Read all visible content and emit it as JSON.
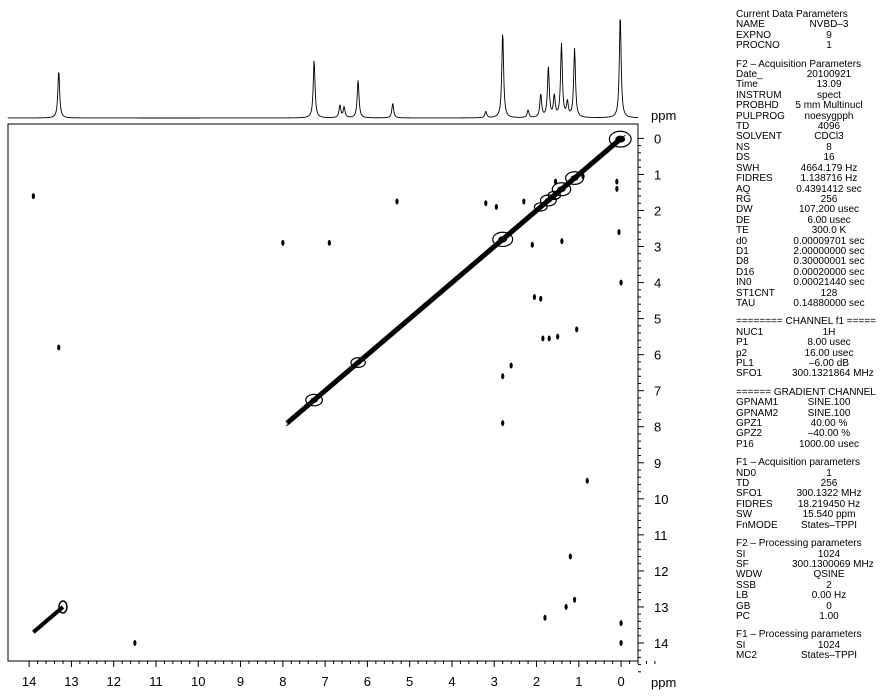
{
  "chart_data": {
    "type": "scatter",
    "title": "",
    "xlabel": "ppm",
    "ylabel": "ppm",
    "xlim": [
      14.5,
      -0.4
    ],
    "ylim": [
      14.5,
      -0.4
    ],
    "x_ticks": [
      "14",
      "13",
      "12",
      "11",
      "10",
      "9",
      "8",
      "7",
      "6",
      "5",
      "4",
      "3",
      "2",
      "1",
      "0"
    ],
    "y_ticks": [
      "0",
      "1",
      "2",
      "3",
      "4",
      "5",
      "6",
      "7",
      "8",
      "9",
      "10",
      "11",
      "12",
      "13",
      "14"
    ],
    "f2_projection_peaks": [
      {
        "ppm": 13.3,
        "height": 0.45
      },
      {
        "ppm": 7.26,
        "height": 0.55
      },
      {
        "ppm": 6.65,
        "height": 0.12
      },
      {
        "ppm": 6.55,
        "height": 0.1
      },
      {
        "ppm": 6.22,
        "height": 0.36
      },
      {
        "ppm": 5.4,
        "height": 0.14
      },
      {
        "ppm": 3.2,
        "height": 0.06
      },
      {
        "ppm": 2.8,
        "height": 0.82
      },
      {
        "ppm": 2.2,
        "height": 0.07
      },
      {
        "ppm": 1.9,
        "height": 0.22
      },
      {
        "ppm": 1.72,
        "height": 0.48
      },
      {
        "ppm": 1.58,
        "height": 0.2
      },
      {
        "ppm": 1.41,
        "height": 0.7
      },
      {
        "ppm": 1.27,
        "height": 0.14
      },
      {
        "ppm": 1.1,
        "height": 0.66
      },
      {
        "ppm": 0.02,
        "height": 0.98
      }
    ],
    "diagonal": {
      "from_ppm": 7.9,
      "to_ppm": 0.0
    },
    "cross_peaks": [
      {
        "x": 13.9,
        "y": 1.6
      },
      {
        "x": 13.3,
        "y": 5.8
      },
      {
        "x": 11.5,
        "y": 14.0
      },
      {
        "x": 8.0,
        "y": 2.9
      },
      {
        "x": 6.9,
        "y": 2.9
      },
      {
        "x": 5.3,
        "y": 1.75
      },
      {
        "x": 3.2,
        "y": 1.8
      },
      {
        "x": 2.95,
        "y": 1.9
      },
      {
        "x": 2.8,
        "y": 6.6
      },
      {
        "x": 2.8,
        "y": 7.9
      },
      {
        "x": 2.3,
        "y": 1.75
      },
      {
        "x": 2.1,
        "y": 2.95
      },
      {
        "x": 2.05,
        "y": 4.4
      },
      {
        "x": 1.9,
        "y": 4.45
      },
      {
        "x": 1.85,
        "y": 5.55
      },
      {
        "x": 1.7,
        "y": 5.55
      },
      {
        "x": 1.5,
        "y": 5.5
      },
      {
        "x": 1.4,
        "y": 2.85
      },
      {
        "x": 1.55,
        "y": 1.2
      },
      {
        "x": 1.05,
        "y": 5.3
      },
      {
        "x": 0.9,
        "y": 1.05
      },
      {
        "x": 0.8,
        "y": 9.5
      },
      {
        "x": 1.8,
        "y": 13.3
      },
      {
        "x": 1.3,
        "y": 13.0
      },
      {
        "x": 1.1,
        "y": 12.8
      },
      {
        "x": 1.2,
        "y": 11.6
      },
      {
        "x": 0.0,
        "y": 13.45
      },
      {
        "x": 0.0,
        "y": 14.0
      },
      {
        "x": 0.0,
        "y": 4.0
      },
      {
        "x": 0.1,
        "y": 1.2
      },
      {
        "x": 0.1,
        "y": 1.4
      },
      {
        "x": 0.05,
        "y": 2.6
      },
      {
        "x": 2.6,
        "y": 6.3
      }
    ],
    "corner_cluster": {
      "x_from": 13.9,
      "x_to": 13.2,
      "y_from": 13.7,
      "y_to": 13.0
    }
  },
  "params": {
    "groups": [
      {
        "title": "Current Data Parameters",
        "rows": [
          [
            "NAME",
            "NVBD–3"
          ],
          [
            "EXPNO",
            "9"
          ],
          [
            "PROCNO",
            "1"
          ]
        ]
      },
      {
        "title": "F2 – Acquisition Parameters",
        "rows": [
          [
            "Date_",
            "20100921"
          ],
          [
            "Time",
            "13.09"
          ],
          [
            "INSTRUM",
            "spect"
          ],
          [
            "PROBHD",
            "5 mm Multinucl"
          ],
          [
            "PULPROG",
            "noesygpph"
          ],
          [
            "TD",
            "4096"
          ],
          [
            "SOLVENT",
            "CDCl3"
          ],
          [
            "NS",
            "8"
          ],
          [
            "DS",
            "16"
          ],
          [
            "SWH",
            "4664.179 Hz"
          ],
          [
            "FIDRES",
            "1.138716 Hz"
          ],
          [
            "AQ",
            "0.4391412 sec"
          ],
          [
            "RG",
            "256"
          ],
          [
            "DW",
            "107.200 usec"
          ],
          [
            "DE",
            "6.00 usec"
          ],
          [
            "TE",
            "300.0 K"
          ],
          [
            "d0",
            "0.00009701 sec"
          ],
          [
            "D1",
            "2.00000000 sec"
          ],
          [
            "D8",
            "0.30000001 sec"
          ],
          [
            "D16",
            "0.00020000 sec"
          ],
          [
            "IN0",
            "0.00021440 sec"
          ],
          [
            "ST1CNT",
            "128"
          ],
          [
            "TAU",
            "0.14880000 sec"
          ]
        ]
      },
      {
        "title": "======== CHANNEL f1 =====",
        "rows": [
          [
            "NUC1",
            "1H"
          ],
          [
            "P1",
            "8.00 usec"
          ],
          [
            "p2",
            "16.00 usec"
          ],
          [
            "PL1",
            "–6.00 dB"
          ],
          [
            "SFO1",
            "300.1321864 MHz"
          ]
        ]
      },
      {
        "title": "====== GRADIENT CHANNEL",
        "rows": [
          [
            "GPNAM1",
            "SINE.100"
          ],
          [
            "GPNAM2",
            "SINE.100"
          ],
          [
            "GPZ1",
            "40.00 %"
          ],
          [
            "GPZ2",
            "–40.00 %"
          ],
          [
            "P16",
            "1000.00 usec"
          ]
        ]
      },
      {
        "title": "F1 – Acquisition parameters",
        "rows": [
          [
            "ND0",
            "1"
          ],
          [
            "TD",
            "256"
          ],
          [
            "SFO1",
            "300.1322 MHz"
          ],
          [
            "FIDRES",
            "18.219450 Hz"
          ],
          [
            "SW",
            "15.540 ppm"
          ],
          [
            "FnMODE",
            "States–TPPI"
          ]
        ]
      },
      {
        "title": "F2 – Processing parameters",
        "rows": [
          [
            "SI",
            "1024"
          ],
          [
            "SF",
            "300.1300069 MHz"
          ],
          [
            "WDW",
            "QSINE"
          ],
          [
            "SSB",
            "2"
          ],
          [
            "LB",
            "0.00 Hz"
          ],
          [
            "GB",
            "0"
          ],
          [
            "PC",
            "1.00"
          ]
        ]
      },
      {
        "title": "F1 – Processing parameters",
        "rows": [
          [
            "SI",
            "1024"
          ],
          [
            "MC2",
            "States–TPPI"
          ]
        ]
      }
    ]
  }
}
